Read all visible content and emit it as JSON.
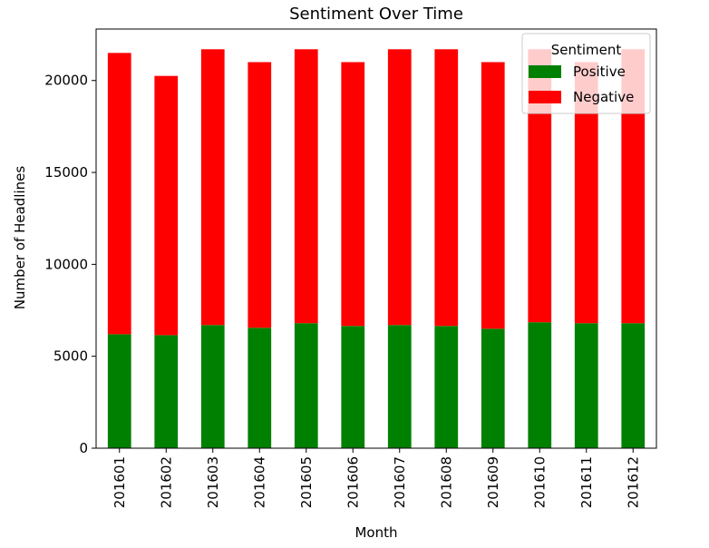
{
  "chart_data": {
    "type": "bar",
    "stacked": true,
    "title": "Sentiment Over Time",
    "xlabel": "Month",
    "ylabel": "Number of Headlines",
    "categories": [
      "201601",
      "201602",
      "201603",
      "201604",
      "201605",
      "201606",
      "201607",
      "201608",
      "201609",
      "201610",
      "201611",
      "201612"
    ],
    "series": [
      {
        "name": "Positive",
        "color": "#008000",
        "values": [
          6200,
          6150,
          6700,
          6550,
          6800,
          6650,
          6700,
          6650,
          6500,
          6850,
          6800,
          6800
        ]
      },
      {
        "name": "Negative",
        "color": "#ff0000",
        "values": [
          15300,
          14100,
          15000,
          14450,
          14900,
          14350,
          15000,
          15050,
          14500,
          14850,
          14200,
          14900
        ]
      }
    ],
    "ylim": [
      0,
      22800
    ],
    "yticks": [
      0,
      5000,
      10000,
      15000,
      20000
    ],
    "legend": {
      "title": "Sentiment",
      "placement": "top-right"
    },
    "grid": false
  }
}
